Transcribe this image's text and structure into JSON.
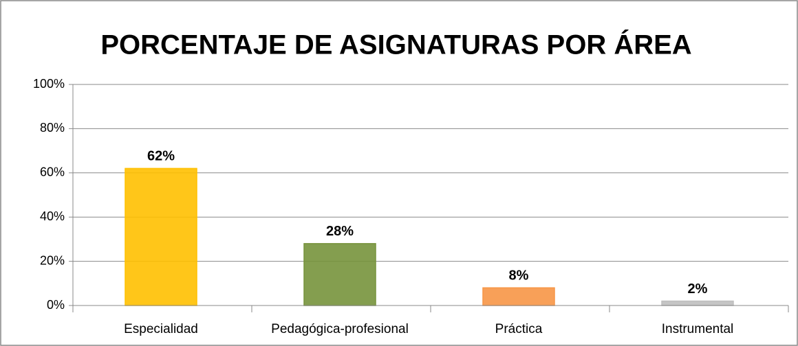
{
  "chart_data": {
    "type": "bar",
    "title": "PORCENTAJE DE ASIGNATURAS POR ÁREA",
    "categories": [
      "Especialidad",
      "Pedagógica-profesional",
      "Práctica",
      "Instrumental"
    ],
    "values": [
      62,
      28,
      8,
      2
    ],
    "value_labels": [
      "62%",
      "28%",
      "8%",
      "2%"
    ],
    "colors": [
      "#ffc000",
      "#77933c",
      "#f79646",
      "#bfbfbf"
    ],
    "ylim": [
      0,
      100
    ],
    "yticks": [
      {
        "value": 0,
        "label": "0%"
      },
      {
        "value": 20,
        "label": "20%"
      },
      {
        "value": 40,
        "label": "40%"
      },
      {
        "value": 60,
        "label": "60%"
      },
      {
        "value": 80,
        "label": "80%"
      },
      {
        "value": 100,
        "label": "100%"
      }
    ],
    "grid": true
  }
}
